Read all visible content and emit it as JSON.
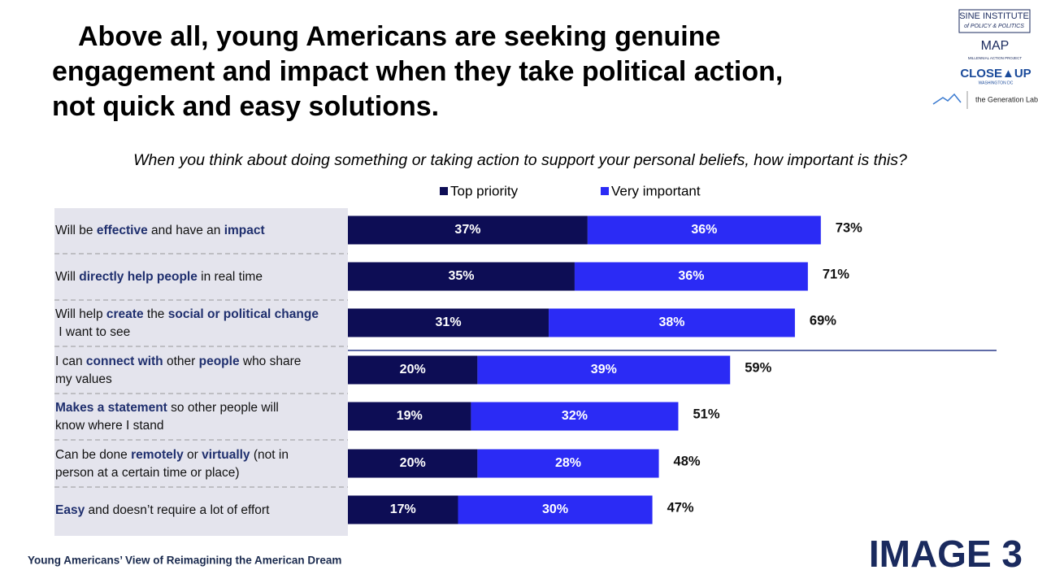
{
  "chart_data": {
    "type": "stacked-bar",
    "title": [
      "Above all, young Americans are seeking genuine",
      "engagement and impact when they take political action,",
      "not quick and easy solutions."
    ],
    "subtitle": "When you think about doing something or taking action to support your personal beliefs, how important is this?",
    "categories": [
      [
        [
          {
            "text": "Will be "
          },
          {
            "text": "effective",
            "bold": true
          },
          {
            "text": " and have an "
          },
          {
            "text": "impact",
            "bold": true
          }
        ]
      ],
      [
        [
          {
            "text": "Will "
          },
          {
            "text": "directly help people",
            "bold": true
          },
          {
            "text": " in real time"
          }
        ]
      ],
      [
        [
          {
            "text": "Will help "
          },
          {
            "text": "create",
            "bold": true
          },
          {
            "text": " the "
          },
          {
            "text": "social or political change",
            "bold": true
          }
        ],
        [
          {
            "text": " I want to see"
          }
        ]
      ],
      [
        [
          {
            "text": "I can "
          },
          {
            "text": "connect with",
            "bold": true
          },
          {
            "text": " other "
          },
          {
            "text": "people",
            "bold": true
          },
          {
            "text": " who share"
          }
        ],
        [
          {
            "text": "my values"
          }
        ]
      ],
      [
        [
          {
            "text": "Makes a statement",
            "bold": true
          },
          {
            "text": " so other people will"
          }
        ],
        [
          {
            "text": "know where I stand"
          }
        ]
      ],
      [
        [
          {
            "text": "Can be done "
          },
          {
            "text": "remotely",
            "bold": true
          },
          {
            "text": " or "
          },
          {
            "text": "virtually",
            "bold": true
          },
          {
            "text": " (not in"
          }
        ],
        [
          {
            "text": "person at a certain time or place)"
          }
        ]
      ],
      [
        [
          {
            "text": "Easy",
            "bold": true
          },
          {
            "text": " and doesn’t require a lot of effort"
          }
        ]
      ]
    ],
    "series": [
      {
        "name": "Top priority",
        "color": "#0d0d55",
        "values": [
          37,
          35,
          31,
          20,
          19,
          20,
          17
        ],
        "value_labels": [
          "37%",
          "35%",
          "31%",
          "20%",
          "19%",
          "20%",
          "17%"
        ]
      },
      {
        "name": "Very important",
        "color": "#2b2bf5",
        "values": [
          36,
          36,
          38,
          39,
          32,
          28,
          30
        ],
        "value_labels": [
          "36%",
          "36%",
          "38%",
          "39%",
          "32%",
          "28%",
          "30%"
        ]
      }
    ],
    "totals": [
      73,
      71,
      69,
      59,
      51,
      48,
      47
    ],
    "total_labels": [
      "73%",
      "71%",
      "69%",
      "59%",
      "51%",
      "48%",
      "47%"
    ]
  },
  "logos": {
    "sine": [
      "SINE INSTITUTE",
      "of POLICY & POLITICS"
    ],
    "map": [
      "MAP",
      "MILLENNIAL ACTION PROJECT"
    ],
    "closeup": [
      "CLOSE▲UP",
      "WASHINGTON DC"
    ],
    "genlab": "the Generation Lab"
  },
  "footer": {
    "caption": "Young Americans’ View of Reimagining the American Dream",
    "image_label": "IMAGE 3"
  }
}
